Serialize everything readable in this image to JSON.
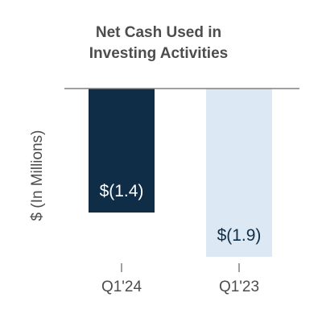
{
  "chart_data": {
    "type": "bar",
    "title_lines": [
      "Net Cash Used in",
      "Investing Activities"
    ],
    "xlabel": "",
    "ylabel": "$ (In Millions)",
    "categories": [
      "Q1'24",
      "Q1'23"
    ],
    "values": [
      -1.4,
      -1.9
    ],
    "value_labels": [
      "$(1.4)",
      "$(1.9)"
    ],
    "ylim": [
      -2.0,
      0
    ],
    "grid": false,
    "legend": "none",
    "colors": {
      "bars": [
        "#0f2d47",
        "#dce9f4"
      ],
      "value_labels": [
        "#ffffff",
        "#0f2d47"
      ],
      "baseline": "#808080",
      "ticks": "#808080",
      "text": "#4d4d4d"
    }
  }
}
